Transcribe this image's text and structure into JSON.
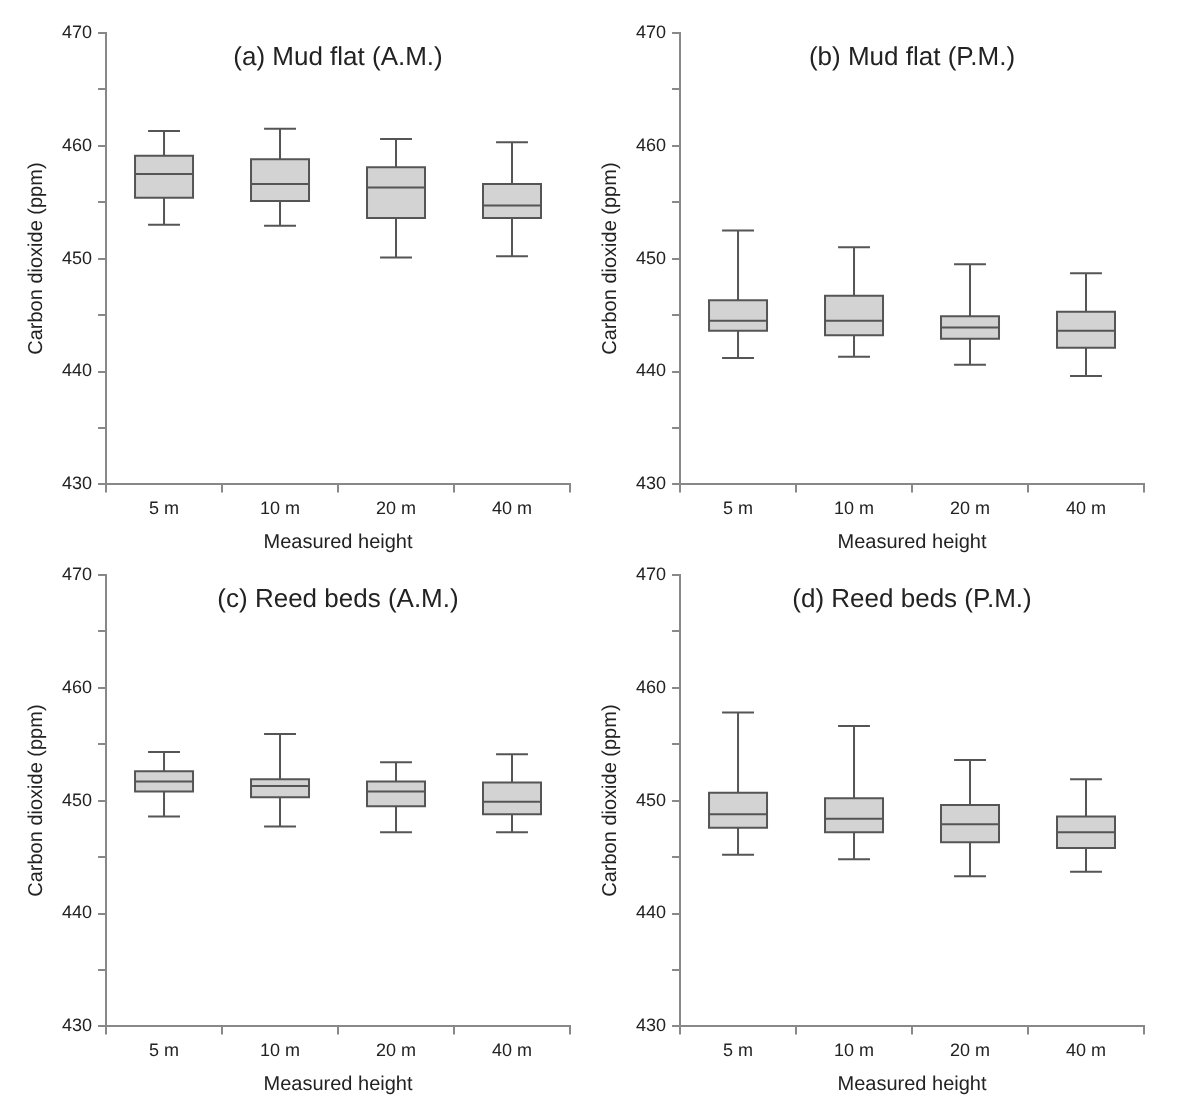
{
  "chart_data": [
    {
      "type": "box",
      "title": "(a) Mud flat (A.M.)",
      "xlabel": "Measured height",
      "ylabel": "Carbon dioxide (ppm)",
      "categories": [
        "5 m",
        "10 m",
        "20 m",
        "40 m"
      ],
      "color": "#d3d3d3",
      "ylim": [
        430,
        470
      ],
      "yticks": [
        430,
        {
          "value": 435,
          "label": null
        },
        440,
        {
          "value": 445,
          "label": null
        },
        450,
        {
          "value": 455,
          "label": null
        },
        460,
        {
          "value": 465,
          "label": null
        },
        470
      ],
      "boxes": [
        {
          "low": 453.0,
          "q1": 455.4,
          "median": 457.5,
          "q3": 459.1,
          "high": 461.3
        },
        {
          "low": 452.9,
          "q1": 455.1,
          "median": 456.6,
          "q3": 458.8,
          "high": 461.5
        },
        {
          "low": 450.1,
          "q1": 453.6,
          "median": 456.3,
          "q3": 458.1,
          "high": 460.6
        },
        {
          "low": 450.2,
          "q1": 453.6,
          "median": 454.7,
          "q3": 456.6,
          "high": 460.3
        }
      ]
    },
    {
      "type": "box",
      "title": "(b) Mud flat (P.M.)",
      "xlabel": "Measured height",
      "ylabel": "Carbon dioxide (ppm)",
      "categories": [
        "5 m",
        "10 m",
        "20 m",
        "40 m"
      ],
      "color": "#d3d3d3",
      "ylim": [
        430,
        470
      ],
      "yticks": [
        430,
        {
          "value": 435,
          "label": null
        },
        440,
        {
          "value": 445,
          "label": null
        },
        450,
        {
          "value": 455,
          "label": null
        },
        460,
        {
          "value": 465,
          "label": null
        },
        470
      ],
      "boxes": [
        {
          "low": 441.2,
          "q1": 443.6,
          "median": 444.5,
          "q3": 446.3,
          "high": 452.5
        },
        {
          "low": 441.3,
          "q1": 443.2,
          "median": 444.5,
          "q3": 446.7,
          "high": 451.0
        },
        {
          "low": 440.6,
          "q1": 442.9,
          "median": 443.9,
          "q3": 444.9,
          "high": 449.5
        },
        {
          "low": 439.6,
          "q1": 442.1,
          "median": 443.6,
          "q3": 445.3,
          "high": 448.7
        }
      ]
    },
    {
      "type": "box",
      "title": "(c) Reed beds (A.M.)",
      "xlabel": "Measured height",
      "ylabel": "Carbon dioxide (ppm)",
      "categories": [
        "5 m",
        "10 m",
        "20 m",
        "40 m"
      ],
      "color": "#d3d3d3",
      "ylim": [
        430,
        470
      ],
      "yticks": [
        430,
        {
          "value": 435,
          "label": null
        },
        440,
        {
          "value": 445,
          "label": null
        },
        450,
        {
          "value": 455,
          "label": null
        },
        460,
        {
          "value": 465,
          "label": null
        },
        470
      ],
      "boxes": [
        {
          "low": 448.6,
          "q1": 450.8,
          "median": 451.7,
          "q3": 452.6,
          "high": 454.3
        },
        {
          "low": 447.7,
          "q1": 450.3,
          "median": 451.3,
          "q3": 451.9,
          "high": 455.9
        },
        {
          "low": 447.2,
          "q1": 449.5,
          "median": 450.8,
          "q3": 451.7,
          "high": 453.4
        },
        {
          "low": 447.2,
          "q1": 448.8,
          "median": 449.9,
          "q3": 451.6,
          "high": 454.1
        }
      ]
    },
    {
      "type": "box",
      "title": "(d) Reed beds (P.M.)",
      "xlabel": "Measured height",
      "ylabel": "Carbon dioxide (ppm)",
      "categories": [
        "5 m",
        "10 m",
        "20 m",
        "40 m"
      ],
      "color": "#d3d3d3",
      "ylim": [
        430,
        470
      ],
      "yticks": [
        430,
        {
          "value": 435,
          "label": null
        },
        440,
        {
          "value": 445,
          "label": null
        },
        450,
        {
          "value": 455,
          "label": null
        },
        460,
        {
          "value": 465,
          "label": null
        },
        470
      ],
      "boxes": [
        {
          "low": 445.2,
          "q1": 447.6,
          "median": 448.8,
          "q3": 450.7,
          "high": 457.8
        },
        {
          "low": 444.8,
          "q1": 447.2,
          "median": 448.4,
          "q3": 450.2,
          "high": 456.6
        },
        {
          "low": 443.3,
          "q1": 446.3,
          "median": 447.9,
          "q3": 449.6,
          "high": 453.6
        },
        {
          "low": 443.7,
          "q1": 445.8,
          "median": 447.2,
          "q3": 448.6,
          "high": 451.9
        }
      ]
    }
  ]
}
